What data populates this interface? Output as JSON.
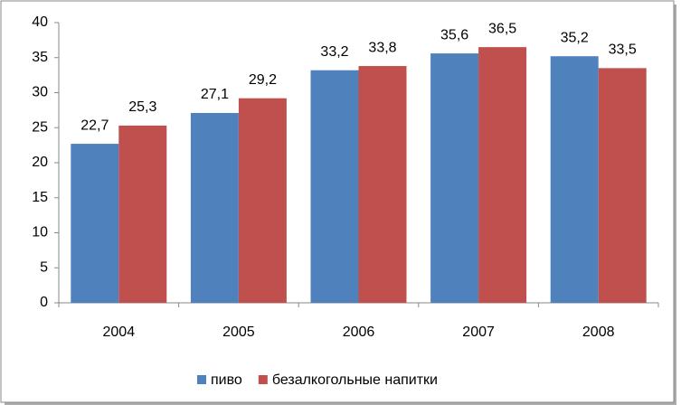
{
  "chart_data": {
    "type": "bar",
    "categories": [
      "2004",
      "2005",
      "2006",
      "2007",
      "2008"
    ],
    "series": [
      {
        "name": "пиво",
        "color": "#4f81bd",
        "values": [
          22.7,
          27.1,
          33.2,
          35.6,
          35.2
        ],
        "value_labels": [
          "22,7",
          "27,1",
          "33,2",
          "35,6",
          "35,2"
        ]
      },
      {
        "name": "безалкогольные напитки",
        "color": "#c0504d",
        "values": [
          25.3,
          29.2,
          33.8,
          36.5,
          33.5
        ],
        "value_labels": [
          "25,3",
          "29,2",
          "33,8",
          "36,5",
          "33,5"
        ]
      }
    ],
    "ylim": [
      0,
      40
    ],
    "yticks": [
      0,
      5,
      10,
      15,
      20,
      25,
      30,
      35,
      40
    ],
    "grid": false,
    "legend": "bottom"
  }
}
